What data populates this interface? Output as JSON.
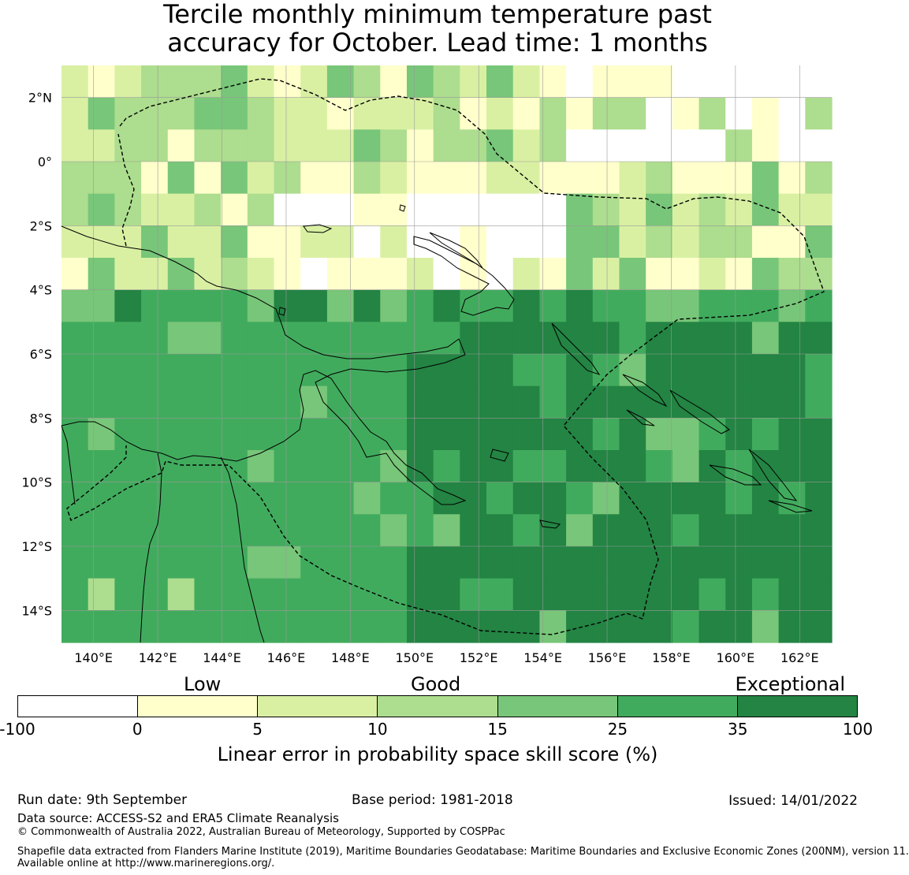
{
  "title": {
    "line1": "Tercile monthly minimum temperature past",
    "line2": "accuracy for October. Lead time: 1 months"
  },
  "map": {
    "lon_range": [
      139,
      163
    ],
    "lat_range": [
      -15,
      3
    ],
    "lon_ticks": [
      140,
      142,
      144,
      146,
      148,
      150,
      152,
      154,
      156,
      158,
      160,
      162
    ],
    "lon_tick_labels": [
      "140°E",
      "142°E",
      "144°E",
      "146°E",
      "148°E",
      "150°E",
      "152°E",
      "154°E",
      "156°E",
      "158°E",
      "160°E",
      "162°E"
    ],
    "lat_ticks": [
      2,
      0,
      -2,
      -4,
      -6,
      -8,
      -10,
      -12,
      -14
    ],
    "lat_tick_labels": [
      "2°N",
      "0°",
      "2°S",
      "4°S",
      "6°S",
      "8°S",
      "10°S",
      "12°S",
      "14°S"
    ]
  },
  "colorbar": {
    "bounds": [
      -100,
      0,
      5,
      10,
      15,
      25,
      35,
      100
    ],
    "tick_labels": [
      "-100",
      "0",
      "5",
      "10",
      "15",
      "25",
      "35",
      "100"
    ],
    "colors": [
      "#ffffff",
      "#ffffcc",
      "#d9f0a3",
      "#addd8e",
      "#78c679",
      "#41ab5d",
      "#238443"
    ],
    "categories": [
      "Low",
      "Good",
      "Exceptional"
    ],
    "label": "Linear error in probability space skill score (%)"
  },
  "footer": {
    "run_date": "Run date: 9th September",
    "base_period": "Base period: 1981-2018",
    "issued": "Issued: 14/01/2022",
    "data_source": "Data source: ACCESS-S2 and ERA5 Climate Reanalysis",
    "copyright": "© Commonwealth of Australia 2022, Australian Bureau of Meteorology, Supported by COSPPac",
    "shapefile_1": "Shapefile data extracted from Flanders Marine Institute (2019), Maritime Boundaries Geodatabase: Maritime Boundaries and Exclusive Economic Zones (200NM), version 11.",
    "shapefile_2": "Available online at http://www.marineregions.org/."
  }
}
